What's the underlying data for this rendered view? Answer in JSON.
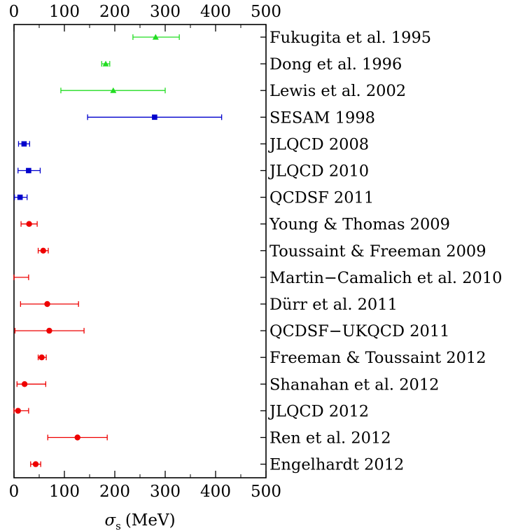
{
  "chart_data": {
    "type": "scatter",
    "orientation": "horizontal-errorbar",
    "xlabel_symbol": "σ",
    "xlabel_subscript": "s",
    "xlabel_unit": "(MeV)",
    "xlim": [
      0,
      500
    ],
    "xticks": [
      "0",
      "100",
      "200",
      "300",
      "400",
      "500"
    ],
    "ticks_top": true,
    "grid": false,
    "colors": {
      "green": "#22dd22",
      "blue": "#0000cc",
      "red": "#ee0000"
    },
    "points": [
      {
        "label": "Fukugita et al. 1995",
        "value": 281,
        "lower": 236,
        "upper": 328,
        "color": "green",
        "marker": "triangle"
      },
      {
        "label": "Dong et al. 1996",
        "value": 182,
        "lower": 174,
        "upper": 190,
        "color": "green",
        "marker": "triangle"
      },
      {
        "label": "Lewis et al. 2002",
        "value": 197,
        "lower": 93,
        "upper": 300,
        "color": "green",
        "marker": "triangle"
      },
      {
        "label": "SESAM 1998",
        "value": 279,
        "lower": 146,
        "upper": 412,
        "color": "blue",
        "marker": "square"
      },
      {
        "label": "JLQCD 2008",
        "value": 20,
        "lower": 9,
        "upper": 31,
        "color": "blue",
        "marker": "square"
      },
      {
        "label": "JLQCD 2010",
        "value": 29,
        "lower": 8,
        "upper": 52,
        "color": "blue",
        "marker": "square"
      },
      {
        "label": "QCDSF 2011",
        "value": 12,
        "lower": 1,
        "upper": 26,
        "color": "blue",
        "marker": "square"
      },
      {
        "label": "Young & Thomas 2009",
        "value": 30,
        "lower": 14,
        "upper": 46,
        "color": "red",
        "marker": "circle"
      },
      {
        "label": "Toussaint & Freeman 2009",
        "value": 58,
        "lower": 48,
        "upper": 68,
        "color": "red",
        "marker": "circle"
      },
      {
        "label": "Martin−Camalich et al. 2010",
        "value": null,
        "lower": 0,
        "upper": 29,
        "color": "red",
        "marker": "none"
      },
      {
        "label": "Dürr et al. 2011",
        "value": 66,
        "lower": 13,
        "upper": 128,
        "color": "red",
        "marker": "circle"
      },
      {
        "label": "QCDSF−UKQCD 2011",
        "value": 70,
        "lower": 2,
        "upper": 139,
        "color": "red",
        "marker": "circle"
      },
      {
        "label": "Freeman & Toussaint 2012",
        "value": 55,
        "lower": 48,
        "upper": 64,
        "color": "red",
        "marker": "circle"
      },
      {
        "label": "Shanahan et al. 2012",
        "value": 21,
        "lower": 6,
        "upper": 63,
        "color": "red",
        "marker": "circle"
      },
      {
        "label": "JLQCD 2012",
        "value": 8,
        "lower": 0,
        "upper": 29,
        "color": "red",
        "marker": "circle"
      },
      {
        "label": "Ren et al. 2012",
        "value": 126,
        "lower": 67,
        "upper": 185,
        "color": "red",
        "marker": "circle"
      },
      {
        "label": "Engelhardt 2012",
        "value": 43,
        "lower": 33,
        "upper": 53,
        "color": "red",
        "marker": "circle"
      }
    ]
  }
}
